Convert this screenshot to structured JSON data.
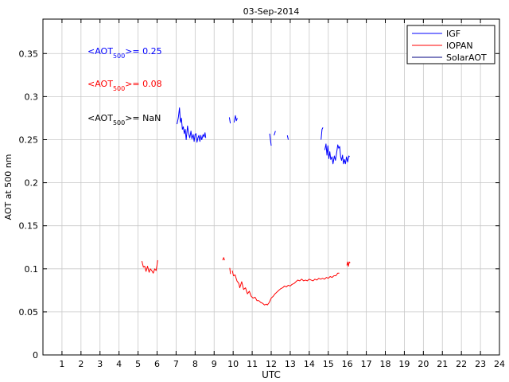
{
  "chart_data": {
    "type": "line",
    "title": "03-Sep-2014",
    "xlabel": "UTC",
    "ylabel": "AOT at 500 nm",
    "xlim": [
      0,
      24
    ],
    "ylim": [
      0,
      0.39
    ],
    "xticks": [
      1,
      2,
      3,
      4,
      5,
      6,
      7,
      8,
      9,
      10,
      11,
      12,
      13,
      14,
      15,
      16,
      17,
      18,
      19,
      20,
      21,
      22,
      23,
      24
    ],
    "yticks": [
      0,
      0.05,
      0.1,
      0.15,
      0.2,
      0.25,
      0.3,
      0.35
    ],
    "ytick_labels": [
      "0",
      "0.05",
      "0.1",
      "0.15",
      "0.2",
      "0.25",
      "0.3",
      "0.35"
    ],
    "grid": true,
    "legend_position": "top-right",
    "legend": [
      {
        "name": "IGF",
        "color": "#0000ff"
      },
      {
        "name": "IOPAN",
        "color": "#ff0000"
      },
      {
        "name": "SolarAOT",
        "color": "#000080"
      }
    ],
    "annotations": [
      {
        "prefix": "<AOT",
        "sub": "500",
        "suffix": ">= 0.25",
        "color": "#0000ff"
      },
      {
        "prefix": "<AOT",
        "sub": "500",
        "suffix": ">= 0.08",
        "color": "#ff0000"
      },
      {
        "prefix": "<AOT",
        "sub": "500",
        "suffix": ">=  NaN",
        "color": "#000000"
      }
    ],
    "series": [
      {
        "name": "IGF",
        "color": "#0000ff",
        "segments": [
          [
            [
              7.05,
              0.268
            ],
            [
              7.12,
              0.276
            ],
            [
              7.18,
              0.287
            ],
            [
              7.23,
              0.27
            ],
            [
              7.28,
              0.275
            ],
            [
              7.33,
              0.262
            ],
            [
              7.38,
              0.265
            ],
            [
              7.43,
              0.257
            ],
            [
              7.48,
              0.262
            ],
            [
              7.53,
              0.25
            ],
            [
              7.6,
              0.266
            ],
            [
              7.65,
              0.258
            ],
            [
              7.72,
              0.252
            ],
            [
              7.78,
              0.26
            ],
            [
              7.83,
              0.251
            ],
            [
              7.9,
              0.256
            ],
            [
              7.95,
              0.248
            ],
            [
              8.0,
              0.256
            ],
            [
              8.05,
              0.257
            ],
            [
              8.1,
              0.247
            ],
            [
              8.15,
              0.252
            ],
            [
              8.2,
              0.255
            ],
            [
              8.25,
              0.248
            ],
            [
              8.3,
              0.255
            ],
            [
              8.35,
              0.25
            ],
            [
              8.42,
              0.256
            ],
            [
              8.47,
              0.253
            ],
            [
              8.52,
              0.258
            ],
            [
              8.56,
              0.252
            ]
          ],
          [
            [
              9.8,
              0.276
            ],
            [
              9.85,
              0.269
            ]
          ],
          [
            [
              10.05,
              0.27
            ],
            [
              10.12,
              0.278
            ],
            [
              10.17,
              0.272
            ],
            [
              10.22,
              0.275
            ]
          ],
          [
            [
              11.92,
              0.257
            ],
            [
              12.0,
              0.243
            ]
          ],
          [
            [
              12.15,
              0.255
            ],
            [
              12.22,
              0.26
            ]
          ],
          [
            [
              12.85,
              0.255
            ],
            [
              12.9,
              0.25
            ]
          ],
          [
            [
              14.62,
              0.25
            ],
            [
              14.67,
              0.262
            ],
            [
              14.72,
              0.264
            ]
          ],
          [
            [
              14.82,
              0.238
            ],
            [
              14.88,
              0.245
            ],
            [
              14.93,
              0.232
            ],
            [
              14.98,
              0.243
            ],
            [
              15.03,
              0.228
            ],
            [
              15.08,
              0.236
            ],
            [
              15.13,
              0.227
            ],
            [
              15.2,
              0.23
            ],
            [
              15.25,
              0.222
            ],
            [
              15.32,
              0.231
            ],
            [
              15.38,
              0.226
            ],
            [
              15.45,
              0.236
            ],
            [
              15.5,
              0.244
            ],
            [
              15.55,
              0.24
            ],
            [
              15.6,
              0.242
            ],
            [
              15.65,
              0.23
            ],
            [
              15.7,
              0.226
            ],
            [
              15.75,
              0.232
            ],
            [
              15.8,
              0.222
            ],
            [
              15.85,
              0.227
            ],
            [
              15.9,
              0.222
            ],
            [
              15.96,
              0.23
            ],
            [
              16.02,
              0.224
            ],
            [
              16.08,
              0.231
            ],
            [
              16.12,
              0.23
            ]
          ]
        ]
      },
      {
        "name": "IOPAN",
        "color": "#ff0000",
        "segments": [
          [
            [
              5.2,
              0.109
            ],
            [
              5.28,
              0.102
            ],
            [
              5.35,
              0.103
            ],
            [
              5.42,
              0.097
            ],
            [
              5.5,
              0.103
            ],
            [
              5.58,
              0.096
            ],
            [
              5.65,
              0.1
            ],
            [
              5.72,
              0.098
            ],
            [
              5.8,
              0.095
            ],
            [
              5.88,
              0.1
            ],
            [
              5.95,
              0.098
            ],
            [
              6.0,
              0.105
            ],
            [
              6.03,
              0.11
            ]
          ],
          [
            [
              9.45,
              0.11
            ],
            [
              9.5,
              0.113
            ],
            [
              9.55,
              0.11
            ]
          ],
          [
            [
              9.82,
              0.101
            ],
            [
              9.86,
              0.094
            ]
          ],
          [
            [
              9.95,
              0.098
            ],
            [
              10.02,
              0.092
            ],
            [
              10.1,
              0.093
            ],
            [
              10.2,
              0.086
            ],
            [
              10.3,
              0.083
            ],
            [
              10.35,
              0.078
            ],
            [
              10.45,
              0.085
            ],
            [
              10.55,
              0.076
            ],
            [
              10.65,
              0.078
            ],
            [
              10.75,
              0.071
            ],
            [
              10.85,
              0.074
            ],
            [
              10.95,
              0.068
            ],
            [
              11.05,
              0.066
            ],
            [
              11.15,
              0.067
            ],
            [
              11.25,
              0.063
            ],
            [
              11.35,
              0.063
            ],
            [
              11.45,
              0.061
            ],
            [
              11.55,
              0.06
            ],
            [
              11.65,
              0.058
            ],
            [
              11.75,
              0.059
            ],
            [
              11.8,
              0.058
            ],
            [
              11.9,
              0.061
            ],
            [
              12.0,
              0.066
            ],
            [
              12.1,
              0.068
            ],
            [
              12.2,
              0.071
            ],
            [
              12.3,
              0.073
            ],
            [
              12.4,
              0.075
            ],
            [
              12.5,
              0.077
            ],
            [
              12.6,
              0.078
            ],
            [
              12.7,
              0.08
            ],
            [
              12.8,
              0.079
            ],
            [
              12.9,
              0.081
            ],
            [
              13.0,
              0.08
            ],
            [
              13.1,
              0.082
            ],
            [
              13.2,
              0.083
            ],
            [
              13.3,
              0.085
            ],
            [
              13.4,
              0.087
            ],
            [
              13.5,
              0.086
            ],
            [
              13.6,
              0.088
            ],
            [
              13.7,
              0.086
            ],
            [
              13.8,
              0.087
            ],
            [
              13.9,
              0.086
            ],
            [
              14.0,
              0.088
            ],
            [
              14.1,
              0.087
            ],
            [
              14.2,
              0.086
            ],
            [
              14.3,
              0.088
            ],
            [
              14.4,
              0.087
            ],
            [
              14.5,
              0.089
            ],
            [
              14.6,
              0.088
            ],
            [
              14.7,
              0.089
            ],
            [
              14.8,
              0.088
            ],
            [
              14.9,
              0.09
            ],
            [
              15.0,
              0.089
            ],
            [
              15.1,
              0.091
            ],
            [
              15.2,
              0.09
            ],
            [
              15.3,
              0.092
            ],
            [
              15.4,
              0.092
            ],
            [
              15.5,
              0.095
            ],
            [
              15.58,
              0.095
            ]
          ],
          [
            [
              15.98,
              0.104
            ],
            [
              16.02,
              0.108
            ],
            [
              16.06,
              0.103
            ],
            [
              16.1,
              0.108
            ],
            [
              16.15,
              0.107
            ]
          ]
        ]
      },
      {
        "name": "SolarAOT",
        "color": "#000080",
        "segments": []
      }
    ]
  }
}
